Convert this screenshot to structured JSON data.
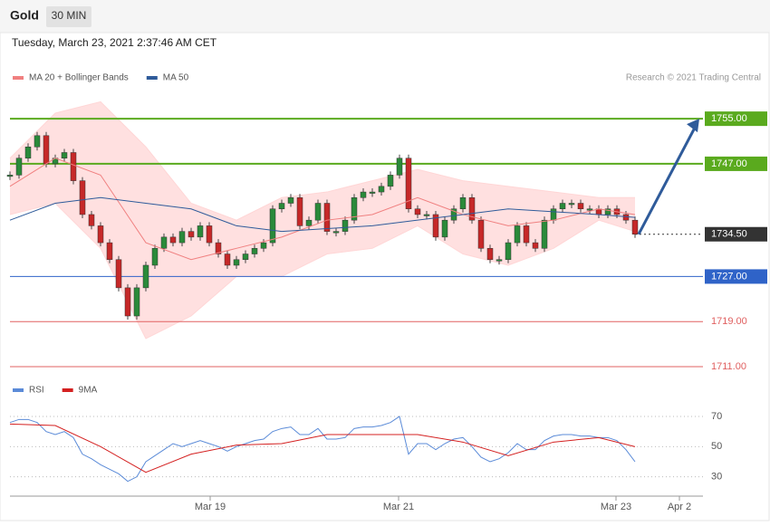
{
  "header": {
    "title": "Gold",
    "interval": "30 MIN",
    "timestamp": "Tuesday, March 23, 2021 2:37:46 AM CET",
    "credit": "Research © 2021 Trading Central"
  },
  "chart_data": [
    {
      "type": "candle-line",
      "xlim": [
        0,
        76.5
      ],
      "ylim": [
        1709.4,
        1760
      ],
      "x": [
        0,
        1,
        2,
        3,
        4,
        5,
        6,
        7,
        8,
        9,
        10,
        11,
        12,
        13,
        14,
        15,
        16,
        17,
        18,
        19,
        20,
        21,
        22,
        23,
        24,
        25,
        26,
        27,
        28,
        29,
        30,
        31,
        32,
        33,
        34,
        35,
        36,
        37,
        38,
        39,
        40,
        41,
        42,
        43,
        44,
        45,
        46,
        47,
        48,
        49,
        50,
        51,
        52,
        53,
        54,
        55,
        56,
        57,
        58,
        59,
        60,
        61,
        62,
        63,
        64,
        65,
        66,
        67,
        68,
        69
      ],
      "values": [
        1745,
        1748,
        1750,
        1752,
        1747,
        1748,
        1749,
        1744,
        1738,
        1736,
        1733,
        1730,
        1725,
        1720,
        1725,
        1729,
        1732,
        1734,
        1733,
        1735,
        1734,
        1736,
        1733,
        1731,
        1729,
        1730,
        1731,
        1732,
        1733,
        1739,
        1740,
        1741,
        1736,
        1737,
        1740,
        1735,
        1735,
        1737,
        1741,
        1742,
        1742,
        1743,
        1745,
        1748,
        1739,
        1738,
        1738,
        1734,
        1737,
        1739,
        1741,
        1737,
        1732,
        1730,
        1730,
        1733,
        1736,
        1733,
        1732,
        1737,
        1739,
        1740,
        1740,
        1739,
        1739,
        1738,
        1739,
        1738,
        1737,
        1734.5
      ],
      "up_color": "#2a8a3a",
      "down_color": "#c62828",
      "bands": {
        "x": [
          0,
          5,
          10,
          15,
          20,
          25,
          30,
          35,
          40,
          45,
          50,
          55,
          60,
          65,
          69
        ],
        "upper": [
          1748,
          1756,
          1758,
          1750,
          1740,
          1737,
          1741,
          1742,
          1744,
          1746,
          1744,
          1743,
          1742,
          1741,
          1741
        ],
        "lower": [
          1738,
          1740,
          1732,
          1716,
          1720,
          1727,
          1727,
          1731,
          1732,
          1736,
          1731,
          1729,
          1732,
          1737,
          1735
        ],
        "color": "#ffd6d6"
      },
      "series": [
        {
          "name": "MA 20 + Bollinger Bands",
          "color": "#f08080",
          "x": [
            0,
            5,
            10,
            15,
            20,
            25,
            30,
            35,
            40,
            45,
            50,
            55,
            60,
            65,
            69
          ],
          "values": [
            1743,
            1748,
            1745,
            1733,
            1730,
            1732,
            1734,
            1737,
            1738,
            1741,
            1738,
            1736,
            1737,
            1739,
            1738
          ]
        },
        {
          "name": "MA 50",
          "color": "#2f5b9a",
          "x": [
            0,
            5,
            10,
            15,
            20,
            25,
            30,
            35,
            40,
            45,
            50,
            55,
            60,
            65,
            69
          ],
          "values": [
            1737,
            1740,
            1741,
            1740,
            1739,
            1736,
            1735,
            1735.5,
            1736,
            1737,
            1738,
            1739,
            1738.5,
            1738,
            1737.5
          ]
        }
      ],
      "levels": [
        {
          "value": 1755,
          "label": "1755.00",
          "color": "#5aaa1e"
        },
        {
          "value": 1747,
          "label": "1747.00",
          "color": "#5aaa1e"
        },
        {
          "value": 1734.5,
          "label": "1734.50",
          "color": "#333333"
        },
        {
          "value": 1727,
          "label": "1727.00",
          "color": "#2f63c8"
        },
        {
          "value": 1719,
          "label": "1719.00",
          "color": "#e06060"
        },
        {
          "value": 1711,
          "label": "1711.00",
          "color": "#e06060"
        }
      ]
    },
    {
      "type": "line",
      "xlim": [
        0,
        76.5
      ],
      "ylim": [
        19,
        82
      ],
      "yticks": [
        70,
        50,
        30
      ],
      "xticks": [
        {
          "value": 22.1,
          "label": "Mar 19"
        },
        {
          "value": 42.9,
          "label": "Mar 21"
        },
        {
          "value": 66.9,
          "label": "Mar 23"
        },
        {
          "value": 73.9,
          "label": "Apr 2"
        }
      ],
      "series": [
        {
          "name": "RSI",
          "color": "#5b8bd8",
          "x": [
            0,
            1,
            2,
            3,
            4,
            5,
            6,
            7,
            8,
            9,
            10,
            11,
            12,
            13,
            14,
            15,
            16,
            17,
            18,
            19,
            20,
            21,
            22,
            23,
            24,
            25,
            26,
            27,
            28,
            29,
            30,
            31,
            32,
            33,
            34,
            35,
            36,
            37,
            38,
            39,
            40,
            41,
            42,
            43,
            44,
            45,
            46,
            47,
            48,
            49,
            50,
            51,
            52,
            53,
            54,
            55,
            56,
            57,
            58,
            59,
            60,
            61,
            62,
            63,
            64,
            65,
            66,
            67,
            68,
            69
          ],
          "values": [
            66,
            68,
            68,
            66,
            60,
            58,
            60,
            56,
            45,
            42,
            38,
            35,
            32,
            27,
            30,
            40,
            44,
            48,
            52,
            50,
            52,
            54,
            52,
            50,
            47,
            50,
            52,
            54,
            55,
            60,
            62,
            63,
            58,
            58,
            62,
            55,
            55,
            56,
            62,
            63,
            63,
            64,
            66,
            70,
            45,
            52,
            52,
            48,
            52,
            55,
            56,
            50,
            43,
            40,
            42,
            46,
            52,
            48,
            48,
            54,
            57,
            58,
            58,
            57,
            57,
            56,
            56,
            54,
            48,
            40
          ]
        },
        {
          "name": "9MA",
          "color": "#d42020",
          "x": [
            0,
            5,
            10,
            15,
            20,
            25,
            30,
            35,
            40,
            45,
            50,
            55,
            60,
            65,
            69
          ],
          "values": [
            65,
            64,
            50,
            33,
            45,
            51,
            52,
            58,
            58,
            58,
            53,
            44,
            53,
            56,
            50
          ]
        }
      ]
    }
  ]
}
